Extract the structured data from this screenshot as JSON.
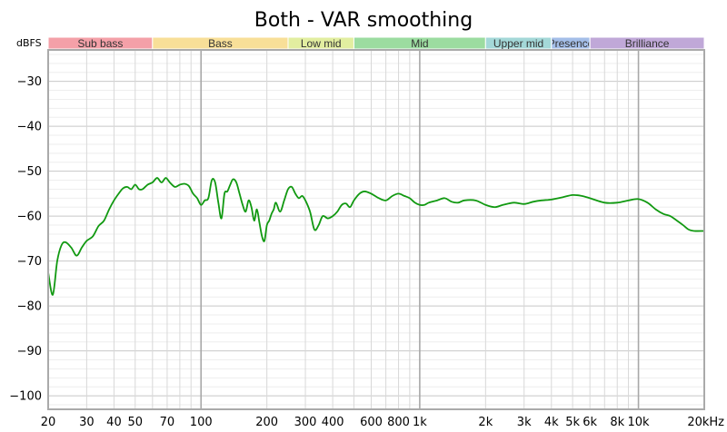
{
  "chart_data": {
    "type": "line",
    "title": "Both - VAR smoothing",
    "ylabel": "dBFS",
    "xlabel": "",
    "x_scale": "log",
    "xlim": [
      20,
      20000
    ],
    "ylim": [
      -103,
      -23
    ],
    "grid": true,
    "legend": "none",
    "y_ticks": [
      -30,
      -40,
      -50,
      -60,
      -70,
      -80,
      -90,
      -100
    ],
    "y_tick_labels": [
      "−30",
      "−40",
      "−50",
      "−60",
      "−70",
      "−80",
      "−90",
      "−100"
    ],
    "x_ticks": [
      20,
      30,
      40,
      50,
      70,
      100,
      200,
      300,
      400,
      600,
      800,
      1000,
      2000,
      3000,
      4000,
      5000,
      6000,
      8000,
      10000,
      20000
    ],
    "x_tick_labels": [
      "20",
      "30",
      "40",
      "50",
      "70",
      "100",
      "200",
      "300",
      "400",
      "600",
      "800",
      "1k",
      "2k",
      "3k",
      "4k",
      "5k",
      "6k",
      "8k",
      "10k",
      "20kHz"
    ],
    "bands": [
      {
        "label": "Sub bass",
        "from": 20,
        "to": 60,
        "color": "#f4a0a8"
      },
      {
        "label": "Bass",
        "from": 60,
        "to": 250,
        "color": "#f8df98"
      },
      {
        "label": "Low mid",
        "from": 250,
        "to": 500,
        "color": "#e2eea0"
      },
      {
        "label": "Mid",
        "from": 500,
        "to": 2000,
        "color": "#9cdca0"
      },
      {
        "label": "Upper mid",
        "from": 2000,
        "to": 4000,
        "color": "#a4d8d8"
      },
      {
        "label": "Presence",
        "from": 4000,
        "to": 6000,
        "color": "#a4bee8"
      },
      {
        "label": "Brilliance",
        "from": 6000,
        "to": 20000,
        "color": "#c0a8d8"
      }
    ],
    "series": [
      {
        "color": "#119911",
        "points": [
          [
            20,
            -72.5
          ],
          [
            21,
            -77.5
          ],
          [
            22,
            -70
          ],
          [
            23,
            -66.5
          ],
          [
            24,
            -65.8
          ],
          [
            25.5,
            -67
          ],
          [
            27,
            -68.8
          ],
          [
            28.5,
            -67
          ],
          [
            30,
            -65.5
          ],
          [
            32,
            -64.5
          ],
          [
            34,
            -62.2
          ],
          [
            36,
            -61
          ],
          [
            38,
            -58.5
          ],
          [
            40,
            -56.5
          ],
          [
            42,
            -55
          ],
          [
            44,
            -53.8
          ],
          [
            46,
            -53.5
          ],
          [
            48,
            -54
          ],
          [
            50,
            -53
          ],
          [
            52,
            -54
          ],
          [
            54,
            -54
          ],
          [
            57,
            -53
          ],
          [
            60,
            -52.5
          ],
          [
            63,
            -51.5
          ],
          [
            66,
            -52.5
          ],
          [
            69,
            -51.5
          ],
          [
            72,
            -52.5
          ],
          [
            76,
            -53.5
          ],
          [
            80,
            -53
          ],
          [
            84,
            -52.8
          ],
          [
            88,
            -53.3
          ],
          [
            92,
            -55
          ],
          [
            96,
            -56
          ],
          [
            100,
            -57.5
          ],
          [
            104,
            -56.5
          ],
          [
            108,
            -56
          ],
          [
            112,
            -52
          ],
          [
            116,
            -52.5
          ],
          [
            120,
            -57
          ],
          [
            124,
            -60.5
          ],
          [
            128,
            -55
          ],
          [
            132,
            -54.5
          ],
          [
            136,
            -53
          ],
          [
            140,
            -51.8
          ],
          [
            145,
            -52.5
          ],
          [
            150,
            -55
          ],
          [
            155,
            -57.5
          ],
          [
            160,
            -59
          ],
          [
            165,
            -56.5
          ],
          [
            170,
            -58
          ],
          [
            175,
            -61
          ],
          [
            180,
            -58.5
          ],
          [
            185,
            -61.5
          ],
          [
            190,
            -64.5
          ],
          [
            195,
            -65.5
          ],
          [
            200,
            -62
          ],
          [
            205,
            -61
          ],
          [
            210,
            -59.5
          ],
          [
            215,
            -58.5
          ],
          [
            220,
            -57
          ],
          [
            230,
            -59
          ],
          [
            240,
            -56.5
          ],
          [
            250,
            -54
          ],
          [
            260,
            -53.5
          ],
          [
            270,
            -55
          ],
          [
            280,
            -56
          ],
          [
            290,
            -55.5
          ],
          [
            300,
            -56.5
          ],
          [
            315,
            -59
          ],
          [
            330,
            -63
          ],
          [
            345,
            -62
          ],
          [
            360,
            -60
          ],
          [
            380,
            -60.5
          ],
          [
            400,
            -60
          ],
          [
            420,
            -59
          ],
          [
            440,
            -57.5
          ],
          [
            460,
            -57.2
          ],
          [
            480,
            -58
          ],
          [
            500,
            -56.5
          ],
          [
            530,
            -55
          ],
          [
            560,
            -54.5
          ],
          [
            600,
            -55
          ],
          [
            650,
            -56
          ],
          [
            700,
            -56.5
          ],
          [
            750,
            -55.5
          ],
          [
            800,
            -55
          ],
          [
            850,
            -55.5
          ],
          [
            900,
            -56
          ],
          [
            950,
            -57
          ],
          [
            1000,
            -57.5
          ],
          [
            1050,
            -57.5
          ],
          [
            1100,
            -57
          ],
          [
            1200,
            -56.5
          ],
          [
            1300,
            -56
          ],
          [
            1400,
            -56.8
          ],
          [
            1500,
            -57
          ],
          [
            1600,
            -56.5
          ],
          [
            1800,
            -56.5
          ],
          [
            2000,
            -57.5
          ],
          [
            2200,
            -58
          ],
          [
            2400,
            -57.5
          ],
          [
            2700,
            -57
          ],
          [
            3000,
            -57.3
          ],
          [
            3300,
            -56.8
          ],
          [
            3600,
            -56.5
          ],
          [
            4000,
            -56.3
          ],
          [
            4500,
            -55.8
          ],
          [
            5000,
            -55.3
          ],
          [
            5500,
            -55.5
          ],
          [
            6000,
            -56
          ],
          [
            7000,
            -57
          ],
          [
            8000,
            -57
          ],
          [
            9000,
            -56.5
          ],
          [
            10000,
            -56.2
          ],
          [
            11000,
            -57
          ],
          [
            12000,
            -58.5
          ],
          [
            13000,
            -59.5
          ],
          [
            14000,
            -60
          ],
          [
            15000,
            -61
          ],
          [
            16000,
            -62
          ],
          [
            17000,
            -63
          ],
          [
            18000,
            -63.3
          ],
          [
            20000,
            -63.3
          ]
        ]
      }
    ]
  }
}
